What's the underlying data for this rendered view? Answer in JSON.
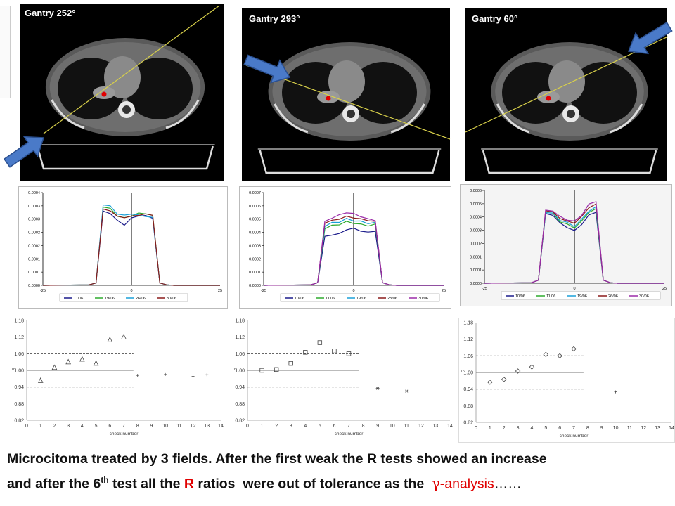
{
  "panels": [
    {
      "gantry_label": "Gantry 252°"
    },
    {
      "gantry_label": "Gantry 293°"
    },
    {
      "gantry_label": "Gantry 60°"
    }
  ],
  "colors": {
    "beam_line": "#d8d04a",
    "arrow_fill": "#4a7ac8",
    "arrow_stroke": "#2a4f8f",
    "isocenter": "#e00000",
    "caption_highlight": "#e00000"
  },
  "chart_data": [
    {
      "type": "line",
      "panel": "Gantry 252°",
      "x": [
        -25,
        -12,
        -10,
        -8,
        -6,
        -4,
        -2,
        0,
        2,
        4,
        6,
        8,
        10,
        12,
        25
      ],
      "xlim": [
        -25,
        25
      ],
      "ylim": [
        0,
        0.0004
      ],
      "x_ticks": [
        "-25",
        "0",
        "25"
      ],
      "y_ticks": [
        "0.0000",
        "0.0001",
        "0.0001",
        "0.0002",
        "0.0002",
        "0.0003",
        "0.0003",
        "0.0004"
      ],
      "series": [
        {
          "name": "11/06",
          "color": "#1a1a8a",
          "values": [
            0,
            2e-06,
            1e-05,
            0.00032,
            0.00031,
            0.00028,
            0.00026,
            0.00029,
            0.0003,
            0.0003,
            0.00029,
            1e-05,
            2e-06,
            0,
            0
          ]
        },
        {
          "name": "19/06",
          "color": "#2eaa2e",
          "values": [
            0,
            2e-06,
            1e-05,
            0.00034,
            0.00033,
            0.0003,
            0.00029,
            0.0003,
            0.00031,
            0.00031,
            0.0003,
            1e-05,
            2e-06,
            0,
            0
          ]
        },
        {
          "name": "26/06",
          "color": "#1aa0d8",
          "values": [
            0,
            2e-06,
            1e-05,
            0.00035,
            0.00034,
            0.00031,
            0.0003,
            0.00031,
            0.0003,
            0.0003,
            0.00029,
            1e-05,
            2e-06,
            0,
            0
          ]
        },
        {
          "name": "30/06",
          "color": "#8a1a1a",
          "values": [
            0,
            2e-06,
            1e-05,
            0.00033,
            0.00032,
            0.0003,
            0.00029,
            0.0003,
            0.0003,
            0.00031,
            0.0003,
            1e-05,
            2e-06,
            0,
            0
          ]
        }
      ]
    },
    {
      "type": "line",
      "panel": "Gantry 293°",
      "x": [
        -25,
        -12,
        -10,
        -8,
        -6,
        -4,
        -2,
        0,
        2,
        4,
        6,
        8,
        10,
        12,
        25
      ],
      "xlim": [
        -25,
        25
      ],
      "ylim": [
        0,
        0.0007
      ],
      "x_ticks": [
        "-25",
        "0",
        "25"
      ],
      "y_ticks": [
        "0.0000",
        "0.0001",
        "0.0002",
        "0.0003",
        "0.0004",
        "0.0005",
        "0.0006",
        "0.0007"
      ],
      "series": [
        {
          "name": "10/06",
          "color": "#1a1a8a",
          "values": [
            0,
            3e-06,
            2e-05,
            0.00037,
            0.00038,
            0.00039,
            0.00042,
            0.00043,
            0.00041,
            0.0004,
            0.00041,
            2e-05,
            3e-06,
            0,
            0
          ]
        },
        {
          "name": "11/06",
          "color": "#2eaa2e",
          "values": [
            0,
            3e-06,
            2e-05,
            0.00043,
            0.00045,
            0.00046,
            0.00048,
            0.00047,
            0.00046,
            0.00045,
            0.00046,
            2e-05,
            3e-06,
            0,
            0
          ]
        },
        {
          "name": "19/06",
          "color": "#1aa0d8",
          "values": [
            0,
            3e-06,
            2e-05,
            0.00045,
            0.00047,
            0.00048,
            0.0005,
            0.00049,
            0.00048,
            0.00047,
            0.00047,
            2e-05,
            3e-06,
            0,
            0
          ]
        },
        {
          "name": "23/06",
          "color": "#8a1a1a",
          "values": [
            0,
            3e-06,
            2e-05,
            0.00047,
            0.00049,
            0.0005,
            0.00052,
            0.00051,
            0.0005,
            0.00049,
            0.00048,
            2e-05,
            3e-06,
            0,
            0
          ]
        },
        {
          "name": "30/06",
          "color": "#9a2aa8",
          "values": [
            0,
            3e-06,
            2e-05,
            0.00048,
            0.00051,
            0.00053,
            0.00055,
            0.00054,
            0.00052,
            0.0005,
            0.00049,
            2e-05,
            3e-06,
            0,
            0
          ]
        }
      ]
    },
    {
      "type": "line",
      "panel": "Gantry 60°",
      "x": [
        -25,
        -12,
        -10,
        -8,
        -6,
        -4,
        -2,
        0,
        2,
        4,
        6,
        8,
        10,
        12,
        25
      ],
      "xlim": [
        -25,
        25
      ],
      "ylim": [
        0,
        0.0006
      ],
      "x_ticks": [
        "-25",
        "0",
        "25"
      ],
      "y_ticks": [
        "0.0000",
        "0.0001",
        "0.0001",
        "0.0002",
        "0.0003",
        "0.0004",
        "0.0005",
        "0.0006"
      ],
      "series": [
        {
          "name": "10/06",
          "color": "#1a1a8a",
          "values": [
            0,
            3e-06,
            2e-05,
            0.00045,
            0.00044,
            0.00039,
            0.00036,
            0.00034,
            0.00038,
            0.00044,
            0.00046,
            2e-05,
            3e-06,
            0,
            0
          ]
        },
        {
          "name": "11/06",
          "color": "#2eaa2e",
          "values": [
            0,
            3e-06,
            2e-05,
            0.00046,
            0.00045,
            0.0004,
            0.00038,
            0.00036,
            0.0004,
            0.00046,
            0.00048,
            2e-05,
            3e-06,
            0,
            0
          ]
        },
        {
          "name": "19/06",
          "color": "#1aa0d8",
          "values": [
            0,
            3e-06,
            2e-05,
            0.00046,
            0.00045,
            0.00041,
            0.00039,
            0.00037,
            0.00041,
            0.00047,
            0.00049,
            2e-05,
            3e-06,
            0,
            0
          ]
        },
        {
          "name": "26/06",
          "color": "#8a1a1a",
          "values": [
            0,
            3e-06,
            2e-05,
            0.00047,
            0.00046,
            0.00042,
            0.0004,
            0.00039,
            0.00043,
            0.00049,
            0.00051,
            2e-05,
            3e-06,
            0,
            0
          ]
        },
        {
          "name": "30/06",
          "color": "#9a2aa8",
          "values": [
            0,
            3e-06,
            2e-05,
            0.00047,
            0.00047,
            0.00043,
            0.00041,
            0.0004,
            0.00044,
            0.00051,
            0.00053,
            2e-05,
            3e-06,
            0,
            0
          ]
        }
      ]
    },
    {
      "type": "scatter",
      "panel": "Gantry 252°",
      "ylabel": "R",
      "xlabel": "check number",
      "xlim": [
        0,
        14
      ],
      "ylim": [
        0.82,
        1.18
      ],
      "y_ticks": [
        "0.82",
        "0.88",
        "0.94",
        "1.00",
        "1.06",
        "1.12",
        "1.18"
      ],
      "x_ticks": [
        "0",
        "1",
        "2",
        "3",
        "4",
        "5",
        "6",
        "7",
        "8",
        "9",
        "10",
        "11",
        "12",
        "13",
        "14"
      ],
      "reference_line": 1.0,
      "tolerance_lines": [
        0.94,
        1.06
      ],
      "points": [
        {
          "x": 1,
          "y": 0.963,
          "marker": "triangle"
        },
        {
          "x": 2,
          "y": 1.01,
          "marker": "triangle"
        },
        {
          "x": 3,
          "y": 1.03,
          "marker": "triangle"
        },
        {
          "x": 4,
          "y": 1.04,
          "marker": "triangle"
        },
        {
          "x": 5,
          "y": 1.025,
          "marker": "triangle"
        },
        {
          "x": 6,
          "y": 1.11,
          "marker": "triangle"
        },
        {
          "x": 7,
          "y": 1.12,
          "marker": "triangle"
        },
        {
          "x": 8,
          "y": 0.982,
          "marker": "plus"
        },
        {
          "x": 10,
          "y": 0.985,
          "marker": "plus"
        },
        {
          "x": 12,
          "y": 0.978,
          "marker": "plus"
        },
        {
          "x": 13,
          "y": 0.984,
          "marker": "plus"
        }
      ]
    },
    {
      "type": "scatter",
      "panel": "Gantry 293°",
      "ylabel": "R",
      "xlabel": "check number",
      "xlim": [
        0,
        14
      ],
      "ylim": [
        0.82,
        1.18
      ],
      "y_ticks": [
        "0.82",
        "0.88",
        "0.94",
        "1.00",
        "1.06",
        "1.12",
        "1.18"
      ],
      "x_ticks": [
        "0",
        "1",
        "2",
        "3",
        "4",
        "5",
        "6",
        "7",
        "8",
        "9",
        "10",
        "11",
        "12",
        "13",
        "14"
      ],
      "reference_line": 1.0,
      "tolerance_lines": [
        0.94,
        1.06
      ],
      "points": [
        {
          "x": 1,
          "y": 1.0,
          "marker": "square"
        },
        {
          "x": 2,
          "y": 1.003,
          "marker": "square"
        },
        {
          "x": 3,
          "y": 1.025,
          "marker": "square"
        },
        {
          "x": 4,
          "y": 1.065,
          "marker": "square"
        },
        {
          "x": 5,
          "y": 1.1,
          "marker": "square"
        },
        {
          "x": 6,
          "y": 1.07,
          "marker": "square"
        },
        {
          "x": 7,
          "y": 1.06,
          "marker": "square"
        },
        {
          "x": 9,
          "y": 0.935,
          "marker": "asterisk"
        },
        {
          "x": 11,
          "y": 0.925,
          "marker": "asterisk"
        }
      ]
    },
    {
      "type": "scatter",
      "panel": "Gantry 60°",
      "ylabel": "R",
      "xlabel": "check number",
      "xlim": [
        0,
        14
      ],
      "ylim": [
        0.82,
        1.18
      ],
      "y_ticks": [
        "0.82",
        "0.88",
        "0.94",
        "1.00",
        "1.06",
        "1.12",
        "1.18"
      ],
      "x_ticks": [
        "0",
        "1",
        "2",
        "3",
        "4",
        "5",
        "6",
        "7",
        "8",
        "9",
        "10",
        "11",
        "12",
        "13",
        "14"
      ],
      "reference_line": 1.0,
      "tolerance_lines": [
        0.94,
        1.06
      ],
      "points": [
        {
          "x": 1,
          "y": 0.965,
          "marker": "diamond"
        },
        {
          "x": 2,
          "y": 0.975,
          "marker": "diamond"
        },
        {
          "x": 3,
          "y": 1.005,
          "marker": "diamond"
        },
        {
          "x": 4,
          "y": 1.02,
          "marker": "diamond"
        },
        {
          "x": 5,
          "y": 1.065,
          "marker": "diamond"
        },
        {
          "x": 6,
          "y": 1.06,
          "marker": "diamond"
        },
        {
          "x": 7,
          "y": 1.085,
          "marker": "diamond"
        },
        {
          "x": 10,
          "y": 0.93,
          "marker": "plus"
        }
      ]
    }
  ],
  "caption": {
    "line1": "Microcitoma treated by 3 fields. After  the first weak the R tests showed an increase",
    "line2_start": "and after the 6",
    "line2_sup": "th",
    "line2_mid": " test  all the ",
    "line2_red": "R",
    "line2_after": " ratios  were out of tolerance as the  ",
    "gamma_symbol": "γ",
    "gamma_rest": "-analysis",
    "ellipsis": "……"
  }
}
